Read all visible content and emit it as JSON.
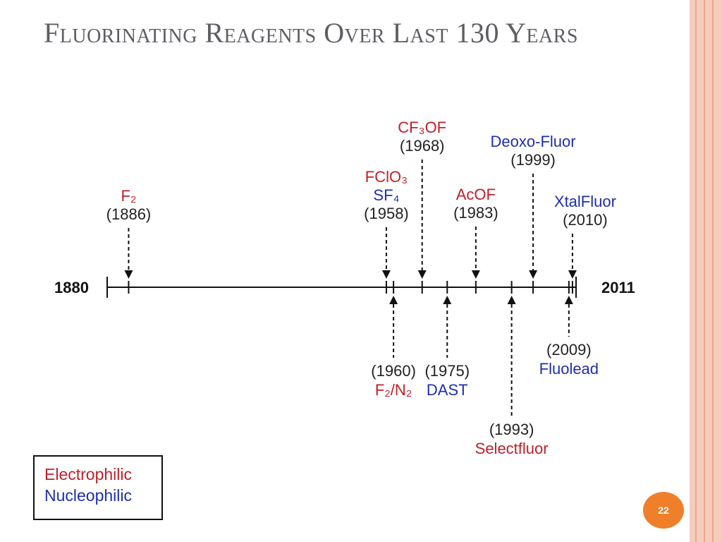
{
  "slide": {
    "title": "Fluorinating Reagents Over Last 130 Years",
    "page_number": "22"
  },
  "colors": {
    "electrophilic": "#c0202a",
    "nucleophilic": "#1f2fae",
    "title": "#5d5d63",
    "accent": "#f07f2a"
  },
  "timeline": {
    "start_label": "1880",
    "end_label": "2011",
    "start_year": 1880,
    "end_year": 2011,
    "events_above": [
      {
        "year": 1886,
        "year_label": "(1886)",
        "names": [
          {
            "text": "F₂",
            "type": "electrophilic"
          }
        ]
      },
      {
        "year": 1958,
        "year_label": "(1958)",
        "names": [
          {
            "text": "FClO₃",
            "type": "electrophilic"
          },
          {
            "text": "SF₄",
            "type": "nucleophilic"
          }
        ]
      },
      {
        "year": 1968,
        "year_label": "(1968)",
        "names": [
          {
            "text": "CF₃OF",
            "type": "electrophilic"
          }
        ]
      },
      {
        "year": 1983,
        "year_label": "(1983)",
        "names": [
          {
            "text": "AcOF",
            "type": "electrophilic"
          }
        ]
      },
      {
        "year": 1999,
        "year_label": "(1999)",
        "names": [
          {
            "text": "Deoxo-Fluor",
            "type": "nucleophilic"
          }
        ]
      },
      {
        "year": 2010,
        "year_label": "(2010)",
        "names": [
          {
            "text": "XtalFluor",
            "type": "nucleophilic"
          }
        ]
      }
    ],
    "events_below": [
      {
        "year": 1960,
        "year_label": "(1960)",
        "names": [
          {
            "text": "F₂/N₂",
            "type": "electrophilic"
          }
        ]
      },
      {
        "year": 1975,
        "year_label": "(1975)",
        "names": [
          {
            "text": "DAST",
            "type": "nucleophilic"
          }
        ]
      },
      {
        "year": 1993,
        "year_label": "(1993)",
        "names": [
          {
            "text": "Selectfluor",
            "type": "electrophilic"
          }
        ]
      },
      {
        "year": 2009,
        "year_label": "(2009)",
        "names": [
          {
            "text": "Fluolead",
            "type": "nucleophilic"
          }
        ]
      }
    ]
  },
  "legend": {
    "electrophilic_label": "Electrophilic",
    "nucleophilic_label": "Nucleophilic"
  }
}
